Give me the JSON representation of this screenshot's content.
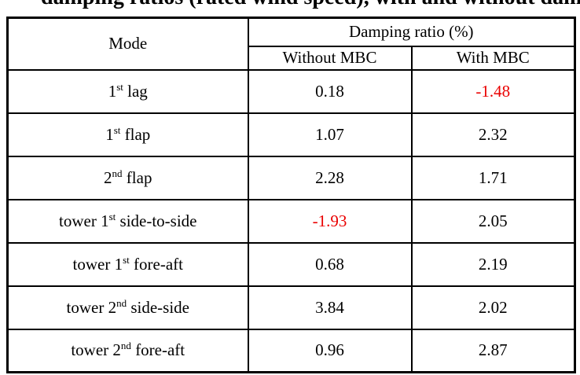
{
  "caption_fragment": "damping ratios (rated wind speed), with and without damping",
  "colors": {
    "negative": "#ea0000",
    "text": "#000000",
    "border": "#000000"
  },
  "table": {
    "header": {
      "mode": "Mode",
      "damping_group": "Damping ratio (%)",
      "col_without": "Without MBC",
      "col_with": "With MBC"
    },
    "rows": [
      {
        "mode_pre": "1",
        "mode_sup": "st",
        "mode_post": " lag",
        "without": "0.18",
        "with": "-1.48"
      },
      {
        "mode_pre": "1",
        "mode_sup": "st",
        "mode_post": " flap",
        "without": "1.07",
        "with": "2.32"
      },
      {
        "mode_pre": "2",
        "mode_sup": "nd",
        "mode_post": " flap",
        "without": "2.28",
        "with": "1.71"
      },
      {
        "mode_pre": "tower 1",
        "mode_sup": "st",
        "mode_post": " side-to-side",
        "without": "-1.93",
        "with": "2.05"
      },
      {
        "mode_pre": "tower 1",
        "mode_sup": "st",
        "mode_post": " fore-aft",
        "without": "0.68",
        "with": "2.19"
      },
      {
        "mode_pre": "tower 2",
        "mode_sup": "nd",
        "mode_post": " side-side",
        "without": "3.84",
        "with": "2.02"
      },
      {
        "mode_pre": "tower 2",
        "mode_sup": "nd",
        "mode_post": " fore-aft",
        "without": "0.96",
        "with": "2.87"
      }
    ]
  }
}
